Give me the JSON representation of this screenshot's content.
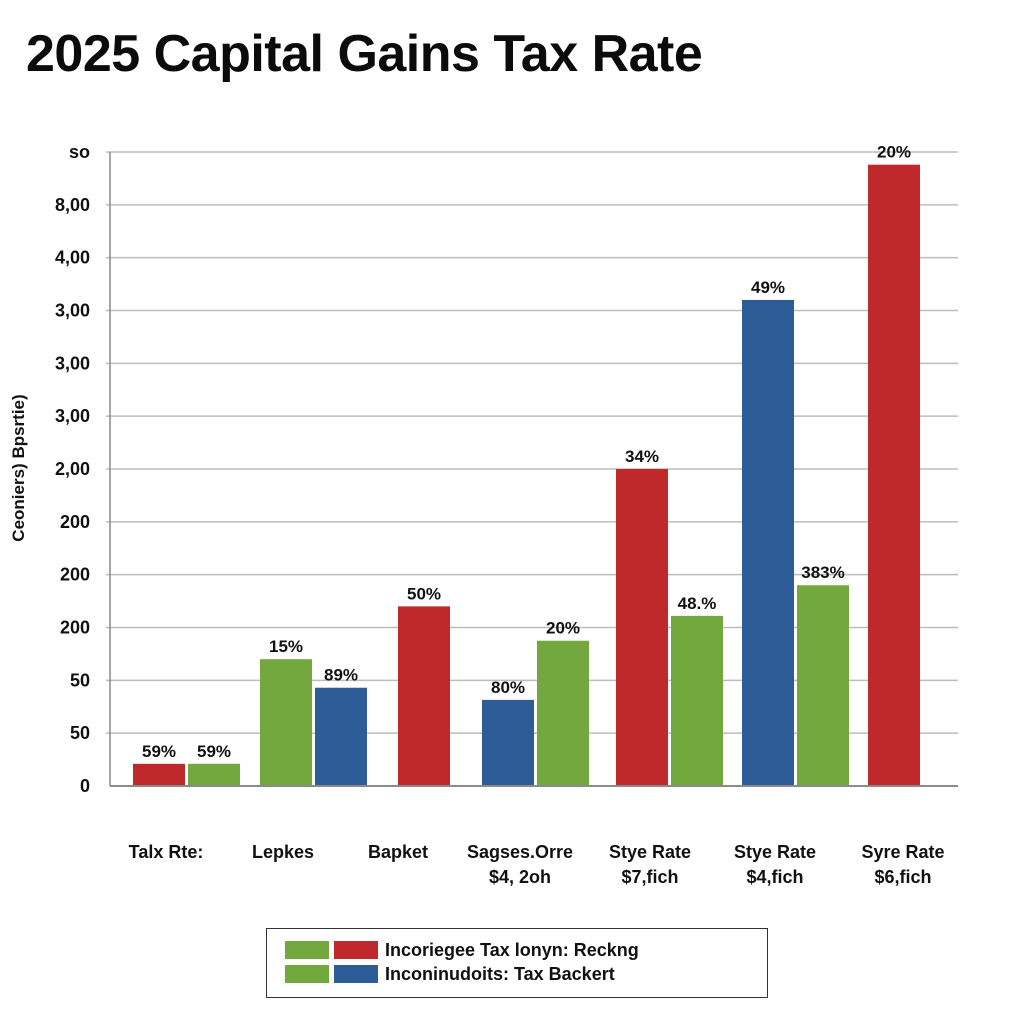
{
  "chart_data": {
    "type": "bar",
    "title": "2025 Capital Gains Tax Rate",
    "xlabel": "",
    "ylabel": "Ceoniers) Bpsrtie)",
    "ylim": [
      0,
      12
    ],
    "grid": true,
    "legend_position": "bottom-center",
    "y_tick_labels": [
      "0",
      "50",
      "50",
      "200",
      "200",
      "200",
      "2,00",
      "3,00",
      "3,00",
      "3,00",
      "4,00",
      "8,00",
      "so"
    ],
    "categories": [
      {
        "line1": "Talx Rte:",
        "line2": ""
      },
      {
        "line1": "Lepkes",
        "line2": ""
      },
      {
        "line1": "Bapket",
        "line2": ""
      },
      {
        "line1": "Sagses.Orre",
        "line2": "$4, 2oh"
      },
      {
        "line1": "Stye Rate",
        "line2": "$7,fich"
      },
      {
        "line1": "Stye Rate",
        "line2": "$4,fich"
      },
      {
        "line1": "Syre Rate",
        "line2": "$6,fich"
      }
    ],
    "bars": [
      {
        "group": 0,
        "slot": 0,
        "color": "red",
        "value": 0.42,
        "label": "59%"
      },
      {
        "group": 0,
        "slot": 1,
        "color": "green",
        "value": 0.42,
        "label": "59%"
      },
      {
        "group": 1,
        "slot": 0,
        "color": "green",
        "value": 2.4,
        "label": "15%"
      },
      {
        "group": 1,
        "slot": 1,
        "color": "blue",
        "value": 1.86,
        "label": "89%"
      },
      {
        "group": 2,
        "slot": 0,
        "color": "red",
        "value": 3.4,
        "label": "50%"
      },
      {
        "group": 3,
        "slot": 0,
        "color": "blue",
        "value": 1.63,
        "label": "80%"
      },
      {
        "group": 3,
        "slot": 1,
        "color": "green",
        "value": 2.75,
        "label": "20%"
      },
      {
        "group": 4,
        "slot": 0,
        "color": "red",
        "value": 6.0,
        "label": "34%"
      },
      {
        "group": 4,
        "slot": 1,
        "color": "green",
        "value": 3.22,
        "label": "48.%"
      },
      {
        "group": 5,
        "slot": 0,
        "color": "blue",
        "value": 9.2,
        "label": "49%"
      },
      {
        "group": 5,
        "slot": 1,
        "color": "green",
        "value": 3.8,
        "label": "383%"
      },
      {
        "group": 6,
        "slot": 0,
        "color": "red",
        "value": 11.76,
        "label": "20%"
      }
    ],
    "colors": {
      "red": "#c0292b",
      "green": "#72a83e",
      "blue": "#2e5c97",
      "grid": "#bdbdbd",
      "axis": "#8a8a8a"
    },
    "legend": [
      {
        "swatches": [
          "green",
          "red"
        ],
        "label": "Incoriegee Tax lonyn: Reckng"
      },
      {
        "swatches": [
          "green",
          "blue"
        ],
        "label": "Inconinudoits: Tax Backert"
      }
    ]
  }
}
